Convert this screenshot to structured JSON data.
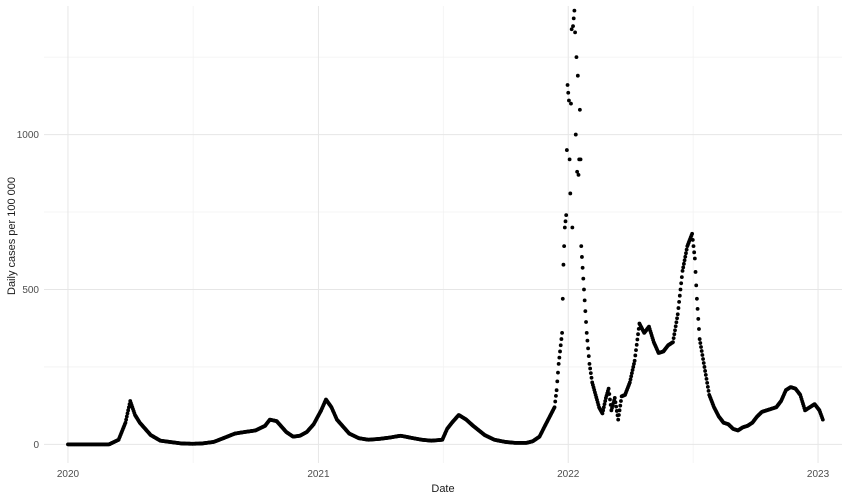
{
  "chart_data": {
    "type": "scatter",
    "title": "",
    "xlabel": "Date",
    "ylabel": "Daily cases per 100 000",
    "grid": true,
    "legend": "none",
    "point_color": "#000000",
    "grid_color": "#e6e6e6",
    "background": "#ffffff",
    "xlim": [
      "2019-11-27",
      "2023-02-05"
    ],
    "ylim": [
      -60,
      1415
    ],
    "x_ticks": [
      {
        "value": "2020-01-01",
        "label": "2020"
      },
      {
        "value": "2021-01-01",
        "label": "2021"
      },
      {
        "value": "2022-01-01",
        "label": "2022"
      },
      {
        "value": "2023-01-01",
        "label": "2023"
      }
    ],
    "y_ticks": [
      {
        "value": 0,
        "label": "0"
      },
      {
        "value": 500,
        "label": "500"
      },
      {
        "value": 1000,
        "label": "1000"
      }
    ],
    "y_minor_ticks": [
      250,
      750,
      1250
    ],
    "points": [
      [
        "2020-01-01",
        0
      ],
      [
        "2020-01-31",
        0
      ],
      [
        "2020-03-01",
        0
      ],
      [
        "2020-03-15",
        15
      ],
      [
        "2020-03-25",
        70
      ],
      [
        "2020-04-01",
        140
      ],
      [
        "2020-04-08",
        95
      ],
      [
        "2020-04-15",
        70
      ],
      [
        "2020-05-01",
        30
      ],
      [
        "2020-05-15",
        12
      ],
      [
        "2020-06-01",
        7
      ],
      [
        "2020-06-15",
        3
      ],
      [
        "2020-07-01",
        2
      ],
      [
        "2020-07-15",
        3
      ],
      [
        "2020-08-01",
        8
      ],
      [
        "2020-08-15",
        20
      ],
      [
        "2020-09-01",
        35
      ],
      [
        "2020-09-15",
        40
      ],
      [
        "2020-10-01",
        45
      ],
      [
        "2020-10-15",
        60
      ],
      [
        "2020-10-22",
        80
      ],
      [
        "2020-11-01",
        75
      ],
      [
        "2020-11-15",
        40
      ],
      [
        "2020-11-25",
        25
      ],
      [
        "2020-12-05",
        28
      ],
      [
        "2020-12-15",
        40
      ],
      [
        "2020-12-25",
        65
      ],
      [
        "2021-01-05",
        110
      ],
      [
        "2021-01-12",
        145
      ],
      [
        "2021-01-20",
        120
      ],
      [
        "2021-01-28",
        80
      ],
      [
        "2021-02-15",
        35
      ],
      [
        "2021-03-01",
        20
      ],
      [
        "2021-03-15",
        15
      ],
      [
        "2021-04-01",
        18
      ],
      [
        "2021-04-15",
        22
      ],
      [
        "2021-05-01",
        28
      ],
      [
        "2021-05-15",
        22
      ],
      [
        "2021-06-01",
        15
      ],
      [
        "2021-06-15",
        12
      ],
      [
        "2021-07-01",
        15
      ],
      [
        "2021-07-08",
        50
      ],
      [
        "2021-07-15",
        70
      ],
      [
        "2021-07-25",
        95
      ],
      [
        "2021-08-05",
        80
      ],
      [
        "2021-08-15",
        60
      ],
      [
        "2021-09-01",
        30
      ],
      [
        "2021-09-15",
        15
      ],
      [
        "2021-10-01",
        8
      ],
      [
        "2021-10-15",
        5
      ],
      [
        "2021-11-01",
        5
      ],
      [
        "2021-11-10",
        10
      ],
      [
        "2021-11-20",
        25
      ],
      [
        "2021-11-28",
        60
      ],
      [
        "2021-12-05",
        90
      ],
      [
        "2021-12-12",
        120
      ],
      [
        "2021-12-15",
        175
      ],
      [
        "2021-12-18",
        260
      ],
      [
        "2021-12-21",
        320
      ],
      [
        "2021-12-23",
        360
      ],
      [
        "2021-12-25",
        580
      ],
      [
        "2021-12-27",
        700
      ],
      [
        "2021-12-29",
        740
      ],
      [
        "2021-12-31",
        1160
      ],
      [
        "2022-01-02",
        1110
      ],
      [
        "2022-01-03",
        920
      ],
      [
        "2022-01-04",
        810
      ],
      [
        "2022-01-05",
        1100
      ],
      [
        "2022-01-06",
        1340
      ],
      [
        "2022-01-07",
        700
      ],
      [
        "2022-01-08",
        1350
      ],
      [
        "2022-01-10",
        1400
      ],
      [
        "2022-01-11",
        1330
      ],
      [
        "2022-01-12",
        1000
      ],
      [
        "2022-01-13",
        1250
      ],
      [
        "2022-01-14",
        880
      ],
      [
        "2022-01-15",
        1190
      ],
      [
        "2022-01-16",
        870
      ],
      [
        "2022-01-17",
        920
      ],
      [
        "2022-01-18",
        1080
      ],
      [
        "2022-01-19",
        920
      ],
      [
        "2022-01-20",
        640
      ],
      [
        "2022-01-22",
        570
      ],
      [
        "2022-01-24",
        500
      ],
      [
        "2022-01-26",
        430
      ],
      [
        "2022-01-28",
        360
      ],
      [
        "2022-02-01",
        260
      ],
      [
        "2022-02-05",
        200
      ],
      [
        "2022-02-10",
        160
      ],
      [
        "2022-02-15",
        120
      ],
      [
        "2022-02-20",
        100
      ],
      [
        "2022-02-25",
        150
      ],
      [
        "2022-03-01",
        180
      ],
      [
        "2022-03-05",
        110
      ],
      [
        "2022-03-10",
        150
      ],
      [
        "2022-03-15",
        80
      ],
      [
        "2022-03-20",
        155
      ],
      [
        "2022-03-25",
        160
      ],
      [
        "2022-04-01",
        200
      ],
      [
        "2022-04-08",
        270
      ],
      [
        "2022-04-15",
        390
      ],
      [
        "2022-04-22",
        360
      ],
      [
        "2022-04-29",
        380
      ],
      [
        "2022-05-06",
        330
      ],
      [
        "2022-05-13",
        295
      ],
      [
        "2022-05-20",
        300
      ],
      [
        "2022-05-27",
        320
      ],
      [
        "2022-06-03",
        330
      ],
      [
        "2022-06-10",
        420
      ],
      [
        "2022-06-17",
        560
      ],
      [
        "2022-06-24",
        640
      ],
      [
        "2022-07-01",
        680
      ],
      [
        "2022-07-05",
        600
      ],
      [
        "2022-07-08",
        470
      ],
      [
        "2022-07-12",
        340
      ],
      [
        "2022-07-19",
        250
      ],
      [
        "2022-07-26",
        160
      ],
      [
        "2022-08-02",
        120
      ],
      [
        "2022-08-09",
        90
      ],
      [
        "2022-08-16",
        70
      ],
      [
        "2022-08-23",
        65
      ],
      [
        "2022-08-30",
        50
      ],
      [
        "2022-09-06",
        45
      ],
      [
        "2022-09-13",
        55
      ],
      [
        "2022-09-20",
        60
      ],
      [
        "2022-09-27",
        70
      ],
      [
        "2022-10-04",
        90
      ],
      [
        "2022-10-11",
        105
      ],
      [
        "2022-10-18",
        110
      ],
      [
        "2022-10-25",
        115
      ],
      [
        "2022-11-01",
        120
      ],
      [
        "2022-11-08",
        140
      ],
      [
        "2022-11-15",
        175
      ],
      [
        "2022-11-22",
        185
      ],
      [
        "2022-11-29",
        180
      ],
      [
        "2022-12-06",
        160
      ],
      [
        "2022-12-13",
        110
      ],
      [
        "2022-12-20",
        120
      ],
      [
        "2022-12-27",
        130
      ],
      [
        "2023-01-03",
        110
      ],
      [
        "2023-01-08",
        80
      ]
    ]
  }
}
